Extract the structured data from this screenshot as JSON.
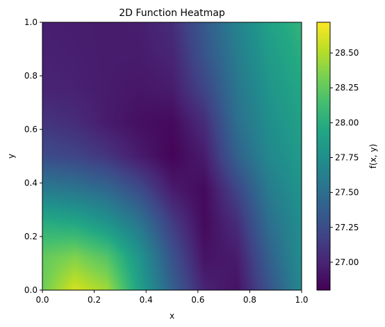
{
  "chart_data": {
    "type": "heatmap",
    "title": "2D Function Heatmap",
    "xlabel": "x",
    "ylabel": "y",
    "xlim": [
      0.0,
      1.0
    ],
    "ylim": [
      0.0,
      1.0
    ],
    "x_ticks": [
      "0.0",
      "0.2",
      "0.4",
      "0.6",
      "0.8",
      "1.0"
    ],
    "y_ticks": [
      "0.0",
      "0.2",
      "0.4",
      "0.6",
      "0.8",
      "1.0"
    ],
    "colormap": "viridis",
    "colorbar": {
      "label": "f(x, y)",
      "range": [
        26.8,
        28.72
      ],
      "ticks": [
        "27.00",
        "27.25",
        "27.50",
        "27.75",
        "28.00",
        "28.25",
        "28.50"
      ]
    },
    "grid_note": "approximate values sampled on a 9x9 grid over x,y in [0,1]; rows from y=0 (bottom) to y=1 (top)",
    "x": [
      0.0,
      0.125,
      0.25,
      0.375,
      0.5,
      0.625,
      0.75,
      0.875,
      1.0
    ],
    "y": [
      0.0,
      0.125,
      0.25,
      0.375,
      0.5,
      0.625,
      0.75,
      0.875,
      1.0
    ],
    "z": [
      [
        28.3,
        28.6,
        28.45,
        27.9,
        27.4,
        27.0,
        26.9,
        27.3,
        27.7
      ],
      [
        28.25,
        28.35,
        28.2,
        27.8,
        27.3,
        26.9,
        26.95,
        27.4,
        27.75
      ],
      [
        28.0,
        27.95,
        27.8,
        27.55,
        27.15,
        26.85,
        27.05,
        27.5,
        27.75
      ],
      [
        27.6,
        27.55,
        27.45,
        27.25,
        26.95,
        26.85,
        27.2,
        27.6,
        27.8
      ],
      [
        27.25,
        27.2,
        27.1,
        26.95,
        26.82,
        26.95,
        27.4,
        27.7,
        27.85
      ],
      [
        27.1,
        27.05,
        26.95,
        26.88,
        26.85,
        27.05,
        27.5,
        27.75,
        27.9
      ],
      [
        27.0,
        26.98,
        26.95,
        26.92,
        26.95,
        27.2,
        27.55,
        27.8,
        27.95
      ],
      [
        26.98,
        26.97,
        26.95,
        26.95,
        27.0,
        27.3,
        27.6,
        27.85,
        28.0
      ],
      [
        26.97,
        26.96,
        26.95,
        26.96,
        27.05,
        27.35,
        27.65,
        27.9,
        28.05
      ]
    ]
  }
}
